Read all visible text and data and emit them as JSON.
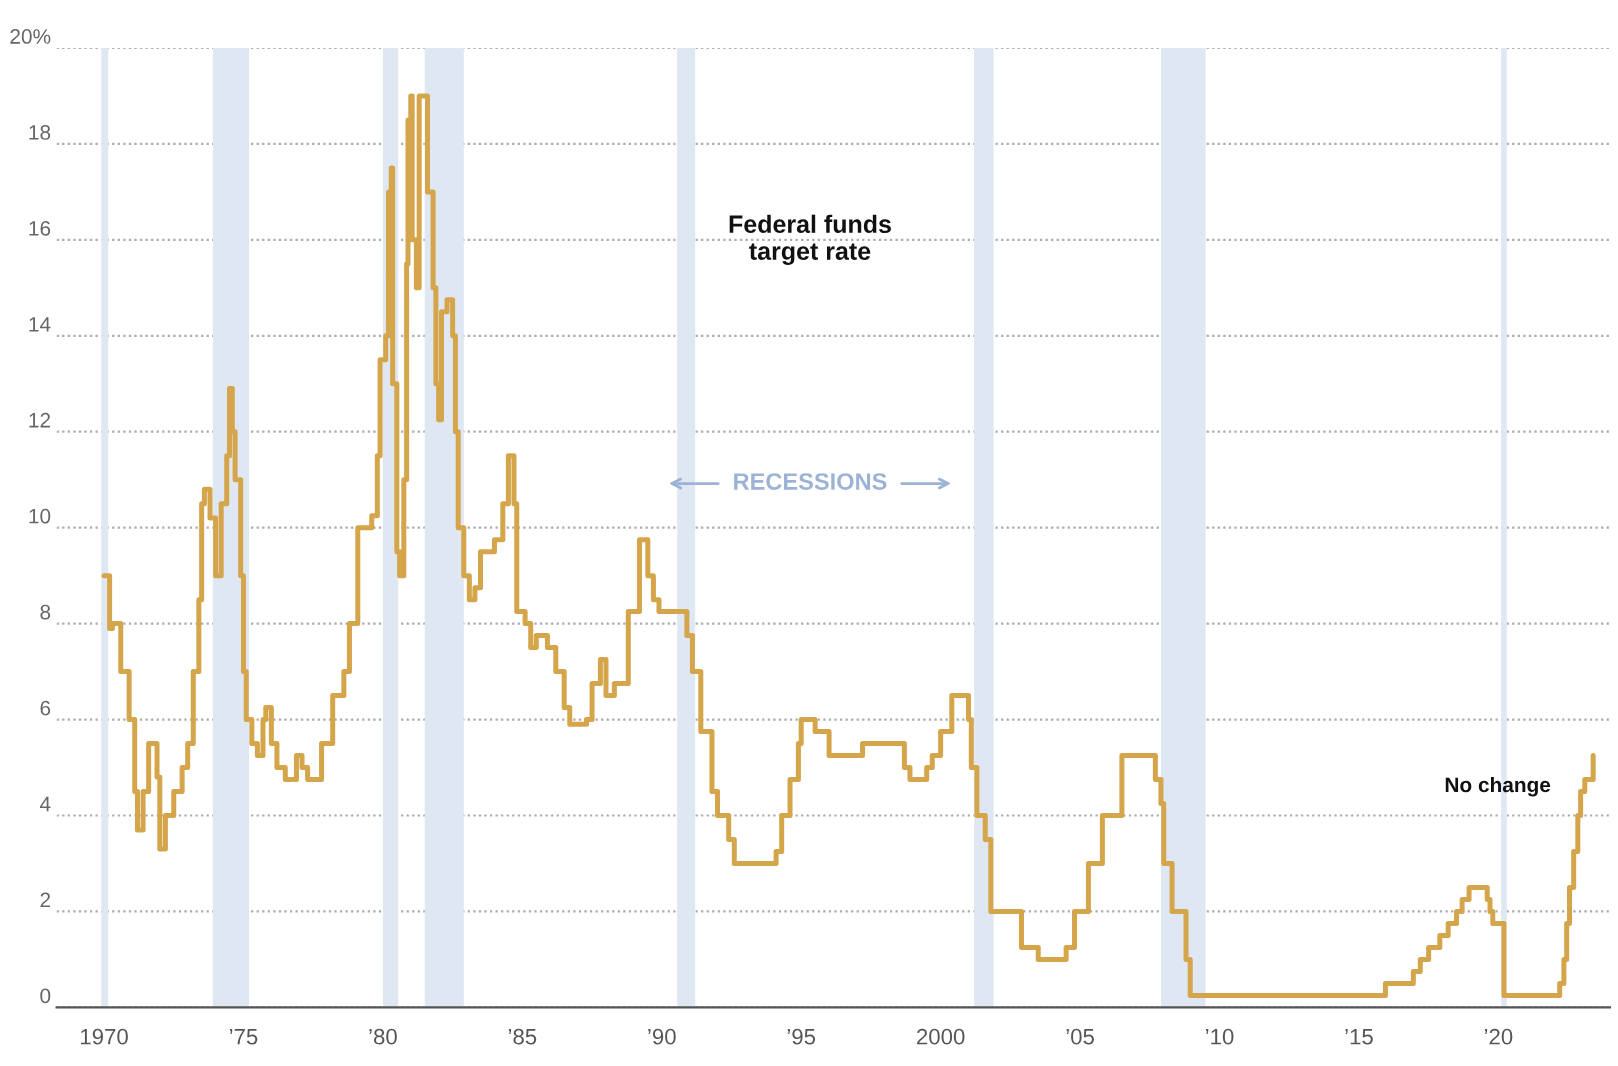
{
  "chart_data": {
    "type": "step",
    "x": [
      1970.0,
      1970.2,
      1970.3,
      1970.6,
      1970.9,
      1971.1,
      1971.2,
      1971.4,
      1971.6,
      1971.9,
      1972.0,
      1972.2,
      1972.5,
      1972.8,
      1973.0,
      1973.2,
      1973.4,
      1973.5,
      1973.6,
      1973.8,
      1974.0,
      1974.2,
      1974.4,
      1974.5,
      1974.6,
      1974.7,
      1974.9,
      1975.0,
      1975.1,
      1975.3,
      1975.5,
      1975.7,
      1975.8,
      1976.0,
      1976.2,
      1976.5,
      1976.9,
      1977.1,
      1977.3,
      1977.6,
      1977.8,
      1978.2,
      1978.6,
      1978.8,
      1979.1,
      1979.6,
      1979.8,
      1979.9,
      1980.1,
      1980.2,
      1980.3,
      1980.35,
      1980.5,
      1980.6,
      1980.75,
      1980.85,
      1980.9,
      1981.0,
      1981.05,
      1981.2,
      1981.3,
      1981.5,
      1981.6,
      1981.8,
      1981.9,
      1982.0,
      1982.1,
      1982.3,
      1982.5,
      1982.6,
      1982.7,
      1982.9,
      1983.1,
      1983.3,
      1983.5,
      1984.0,
      1984.3,
      1984.5,
      1984.7,
      1984.8,
      1985.1,
      1985.3,
      1985.5,
      1985.9,
      1986.2,
      1986.5,
      1986.7,
      1987.3,
      1987.5,
      1987.8,
      1988.0,
      1988.3,
      1988.8,
      1989.2,
      1989.5,
      1989.7,
      1989.9,
      1990.9,
      1991.1,
      1991.4,
      1991.8,
      1992.0,
      1992.4,
      1992.6,
      1994.1,
      1994.3,
      1994.6,
      1994.9,
      1995.0,
      1995.5,
      1996.0,
      1997.2,
      1998.7,
      1998.9,
      1999.5,
      1999.7,
      2000.0,
      2000.4,
      2001.0,
      2001.1,
      2001.3,
      2001.6,
      2001.8,
      2002.9,
      2003.5,
      2004.5,
      2004.8,
      2005.3,
      2005.8,
      2006.5,
      2007.7,
      2007.9,
      2008.0,
      2008.3,
      2008.8,
      2008.95,
      2015.95,
      2016.95,
      2017.2,
      2017.5,
      2017.9,
      2018.2,
      2018.5,
      2018.7,
      2018.95,
      2019.6,
      2019.7,
      2019.8,
      2020.2,
      2022.2,
      2022.35,
      2022.45,
      2022.55,
      2022.7,
      2022.85,
      2022.95,
      2023.1,
      2023.4
    ],
    "series": [
      {
        "color": "#d4a54a",
        "values": [
          9.0,
          7.9,
          8.0,
          7.0,
          6.0,
          4.5,
          3.7,
          4.5,
          5.5,
          4.8,
          3.3,
          4.0,
          4.5,
          5.0,
          5.5,
          7.0,
          8.5,
          10.5,
          10.8,
          10.2,
          9.0,
          10.5,
          11.5,
          12.9,
          12.0,
          11.0,
          9.0,
          7.0,
          6.0,
          5.5,
          5.25,
          6.0,
          6.25,
          5.5,
          5.0,
          4.75,
          5.25,
          5.0,
          4.75,
          4.75,
          5.5,
          6.5,
          7.0,
          8.0,
          10.0,
          10.25,
          11.5,
          13.5,
          14.0,
          17.0,
          17.5,
          13.0,
          9.5,
          9.0,
          11.0,
          15.5,
          18.5,
          19.0,
          16.0,
          15.0,
          19.0,
          19.0,
          17.0,
          15.0,
          13.0,
          12.25,
          14.5,
          14.75,
          14.0,
          12.0,
          10.0,
          9.0,
          8.5,
          8.75,
          9.5,
          9.75,
          10.5,
          11.5,
          10.5,
          8.25,
          8.0,
          7.5,
          7.75,
          7.5,
          7.0,
          6.25,
          5.9,
          6.0,
          6.75,
          7.25,
          6.5,
          6.75,
          8.25,
          9.75,
          9.0,
          8.5,
          8.25,
          7.75,
          7.0,
          5.75,
          4.5,
          4.0,
          3.5,
          3.0,
          3.25,
          4.0,
          4.75,
          5.5,
          6.0,
          5.75,
          5.25,
          5.5,
          5.0,
          4.75,
          5.0,
          5.25,
          5.75,
          6.5,
          6.0,
          5.0,
          4.0,
          3.5,
          2.0,
          1.25,
          1.0,
          1.25,
          2.0,
          3.0,
          4.0,
          5.25,
          4.75,
          4.25,
          3.0,
          2.0,
          1.0,
          0.25,
          0.5,
          0.75,
          1.0,
          1.25,
          1.5,
          1.75,
          2.0,
          2.25,
          2.5,
          2.25,
          2.0,
          1.75,
          0.25,
          0.5,
          1.0,
          1.75,
          2.5,
          3.25,
          4.0,
          4.5,
          4.75,
          5.25
        ]
      }
    ],
    "xlim": [
      1968.3,
      2024.0
    ],
    "ylim": [
      0,
      20
    ],
    "xticks": [
      {
        "value": 1970,
        "label": "1970"
      },
      {
        "value": 1975,
        "label": "’75"
      },
      {
        "value": 1980,
        "label": "’80"
      },
      {
        "value": 1985,
        "label": "’85"
      },
      {
        "value": 1990,
        "label": "’90"
      },
      {
        "value": 1995,
        "label": "’95"
      },
      {
        "value": 2000,
        "label": "2000"
      },
      {
        "value": 2005,
        "label": "’05"
      },
      {
        "value": 2010,
        "label": "’10"
      },
      {
        "value": 2015,
        "label": "’15"
      },
      {
        "value": 2020,
        "label": "’20"
      }
    ],
    "yticks": [
      0,
      2,
      4,
      6,
      8,
      10,
      12,
      14,
      16,
      18,
      {
        "value": 20,
        "label": "20%"
      }
    ],
    "grid": "y",
    "bands": [
      {
        "axis": "x",
        "from": 1969.9,
        "to": 1970.15,
        "color": "#dfe7f2"
      },
      {
        "axis": "x",
        "from": 1973.9,
        "to": 1975.2,
        "color": "#dfe7f2"
      },
      {
        "axis": "x",
        "from": 1980.0,
        "to": 1980.55,
        "color": "#dfe7f2"
      },
      {
        "axis": "x",
        "from": 1981.5,
        "to": 1982.9,
        "color": "#dfe7f2"
      },
      {
        "axis": "x",
        "from": 1990.55,
        "to": 1991.2,
        "color": "#dfe7f2"
      },
      {
        "axis": "x",
        "from": 2001.2,
        "to": 2001.9,
        "color": "#dfe7f2"
      },
      {
        "axis": "x",
        "from": 2007.9,
        "to": 2009.5,
        "color": "#dfe7f2"
      },
      {
        "axis": "x",
        "from": 2020.1,
        "to": 2020.3,
        "color": "#dfe7f2"
      }
    ],
    "annotations": [
      "Federal funds\ntarget rate",
      "RECESSIONS",
      "No change"
    ]
  }
}
